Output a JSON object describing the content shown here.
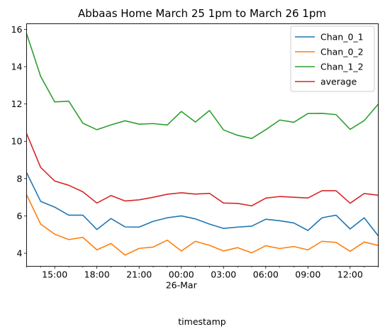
{
  "chart_data": {
    "type": "line",
    "title": "Abbaas Home March 25 1pm to March 26 1pm",
    "xlabel": "timestamp",
    "ylabel": "",
    "x": [
      "2024-03-25 13:00",
      "2024-03-25 14:00",
      "2024-03-25 15:00",
      "2024-03-25 16:00",
      "2024-03-25 17:00",
      "2024-03-25 18:00",
      "2024-03-25 19:00",
      "2024-03-25 20:00",
      "2024-03-25 21:00",
      "2024-03-25 22:00",
      "2024-03-25 23:00",
      "2024-03-26 00:00",
      "2024-03-26 01:00",
      "2024-03-26 02:00",
      "2024-03-26 03:00",
      "2024-03-26 04:00",
      "2024-03-26 05:00",
      "2024-03-26 06:00",
      "2024-03-26 07:00",
      "2024-03-26 08:00",
      "2024-03-26 09:00",
      "2024-03-26 10:00",
      "2024-03-26 11:00",
      "2024-03-26 12:00",
      "2024-03-26 13:00",
      "2024-03-26 14:00"
    ],
    "xlim": [
      "2024-03-25 13:00",
      "2024-03-26 14:00"
    ],
    "ylim": [
      3.3,
      16.3
    ],
    "x_ticks": [
      {
        "label": "15:00",
        "at": "2024-03-25 15:00"
      },
      {
        "label": "18:00",
        "at": "2024-03-25 18:00"
      },
      {
        "label": "21:00",
        "at": "2024-03-25 21:00"
      },
      {
        "label": "00:00",
        "at": "2024-03-26 00:00",
        "sublabel": "26-Mar"
      },
      {
        "label": "03:00",
        "at": "2024-03-26 03:00"
      },
      {
        "label": "06:00",
        "at": "2024-03-26 06:00"
      },
      {
        "label": "09:00",
        "at": "2024-03-26 09:00"
      },
      {
        "label": "12:00",
        "at": "2024-03-26 12:00"
      }
    ],
    "y_ticks": [
      4,
      6,
      8,
      10,
      12,
      14,
      16
    ],
    "grid": false,
    "legend_position": "top-right",
    "series": [
      {
        "name": "Chan_0_1",
        "color": "#1f77b4",
        "values": [
          8.32,
          6.78,
          6.47,
          6.04,
          6.04,
          5.27,
          5.86,
          5.41,
          5.4,
          5.71,
          5.9,
          6.0,
          5.84,
          5.56,
          5.33,
          5.4,
          5.45,
          5.82,
          5.74,
          5.62,
          5.22,
          5.9,
          6.04,
          5.3,
          5.9,
          4.93
        ]
      },
      {
        "name": "Chan_0_2",
        "color": "#ff7f0e",
        "values": [
          7.13,
          5.56,
          5.02,
          4.73,
          4.85,
          4.18,
          4.52,
          3.9,
          4.26,
          4.33,
          4.7,
          4.12,
          4.64,
          4.42,
          4.12,
          4.3,
          4.02,
          4.4,
          4.25,
          4.36,
          4.18,
          4.64,
          4.58,
          4.1,
          4.6,
          4.42
        ]
      },
      {
        "name": "Chan_1_2",
        "color": "#2ca02c",
        "values": [
          15.77,
          13.48,
          12.11,
          12.15,
          10.97,
          10.62,
          10.88,
          11.1,
          10.92,
          10.95,
          10.87,
          11.6,
          11.03,
          11.65,
          10.61,
          10.32,
          10.15,
          10.62,
          11.14,
          11.02,
          11.49,
          11.5,
          11.43,
          10.64,
          11.11,
          11.99
        ]
      },
      {
        "name": "average",
        "color": "#d62728",
        "values": [
          10.41,
          8.6,
          7.87,
          7.64,
          7.29,
          6.69,
          7.09,
          6.8,
          6.86,
          7.0,
          7.16,
          7.24,
          7.17,
          7.21,
          6.69,
          6.67,
          6.54,
          6.95,
          7.04,
          7.0,
          6.96,
          7.35,
          7.35,
          6.68,
          7.2,
          7.11
        ]
      }
    ]
  }
}
